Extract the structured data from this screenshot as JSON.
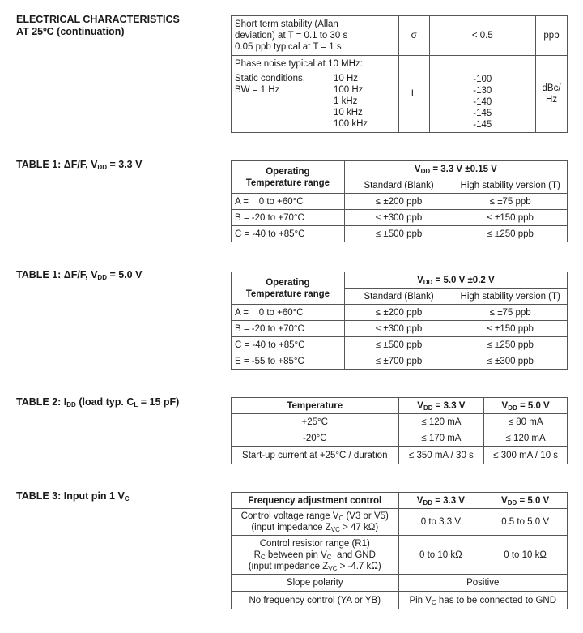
{
  "section": {
    "line1": "ELECTRICAL CHARACTERISTICS",
    "line2": "AT 25ºC (continuation)"
  },
  "top_table": {
    "row1": {
      "param": [
        "Short term stability (Allan",
        "deviation) at T = 0.1 to 30 s",
        "0.05 ppb typical at T = 1 s"
      ],
      "symbol": "σ",
      "value": "< 0.5",
      "unit": "ppb"
    },
    "row2": {
      "heading": "Phase noise typical at 10 MHz:",
      "cond1": "Static conditions,",
      "cond2": "BW = 1 Hz",
      "freqs": [
        "10 Hz",
        "100 Hz",
        "1 kHz",
        "10 kHz",
        "100 kHz"
      ],
      "symbol": "L",
      "values": [
        "-100",
        "-130",
        "-140",
        "-145",
        "-145"
      ],
      "unit1": "dBc/",
      "unit2": "Hz"
    }
  },
  "table1a": {
    "label": "TABLE 1: ΔF/F, V",
    "label_sub": "DD",
    "label_end": " = 3.3 V",
    "h_op1": "Operating",
    "h_op2": "Temperature range",
    "h_v": "V",
    "h_v_sub": "DD",
    "h_v_end": " = 3.3 V ±0.15 V",
    "h_std": "Standard (Blank)",
    "h_high": "High stability version (T)",
    "rows": [
      [
        "A =    0 to +60°C",
        "≤ ±200 ppb",
        "≤ ±75 ppb"
      ],
      [
        "B = -20 to +70°C",
        "≤ ±300 ppb",
        "≤ ±150 ppb"
      ],
      [
        "C = -40 to +85°C",
        "≤ ±500 ppb",
        "≤ ±250 ppb"
      ]
    ]
  },
  "table1b": {
    "label": "TABLE 1: ΔF/F, V",
    "label_sub": "DD",
    "label_end": " = 5.0 V",
    "h_op1": "Operating",
    "h_op2": "Temperature range",
    "h_v": "V",
    "h_v_sub": "DD",
    "h_v_end": " = 5.0 V ±0.2 V",
    "h_std": "Standard (Blank)",
    "h_high": "High stability version (T)",
    "rows": [
      [
        "A =    0 to +60°C",
        "≤ ±200 ppb",
        "≤ ±75 ppb"
      ],
      [
        "B = -20 to +70°C",
        "≤ ±300 ppb",
        "≤ ±150 ppb"
      ],
      [
        "C = -40 to +85°C",
        "≤ ±500 ppb",
        "≤ ±250 ppb"
      ],
      [
        "E = -55 to +85°C",
        "≤ ±700 ppb",
        "≤ ±300 ppb"
      ]
    ]
  },
  "table2": {
    "label": "TABLE 2: I",
    "label_sub": "DD",
    "label_mid": " (load typ. C",
    "label_sub2": "L",
    "label_end": " = 15 pF)",
    "h_temp": "Temperature",
    "h_v": "V",
    "h_v_sub": "DD",
    "h_v33": " = 3.3 V",
    "h_v50": " = 5.0 V",
    "rows": [
      [
        "+25°C",
        "≤ 120 mA",
        "≤ 80 mA"
      ],
      [
        "-20°C",
        "≤ 170 mA",
        "≤ 120 mA"
      ],
      [
        "Start-up current at +25°C / duration",
        "≤ 350 mA / 30 s",
        "≤ 300 mA / 10 s"
      ]
    ]
  },
  "table3": {
    "label": "TABLE 3: Input pin 1 V",
    "label_sub": "C",
    "h_ctrl": "Frequency adjustment control",
    "h_v": "V",
    "h_v_sub": "DD",
    "h_v33": " = 3.3 V",
    "h_v50": " = 5.0 V",
    "r1": {
      "a": "Control voltage range V",
      "a_sub": "C",
      "a_end": " (V3 or V5)",
      "b": "(input impedance Z",
      "b_sub": "VC",
      "b_end": " > 47 kΩ)",
      "v33": "0 to 3.3 V",
      "v50": "0.5 to 5.0 V"
    },
    "r2": {
      "a": "Control resistor range (R1)",
      "b": "R",
      "b_sub": "C",
      "b_mid": " between pin V",
      "b_sub2": "C",
      "b_end": "  and GND",
      "c": "(input impedance Z",
      "c_sub": "VC",
      "c_end": " > -4.7 kΩ)",
      "v33": "0 to 10 kΩ",
      "v50": "0 to 10 kΩ"
    },
    "r3": {
      "a": "Slope polarity",
      "v": "Positive"
    },
    "r4": {
      "a": "No frequency control (YA or YB)",
      "v": "Pin V",
      "v_sub": "C",
      "v_end": " has to be connected to GND"
    }
  }
}
